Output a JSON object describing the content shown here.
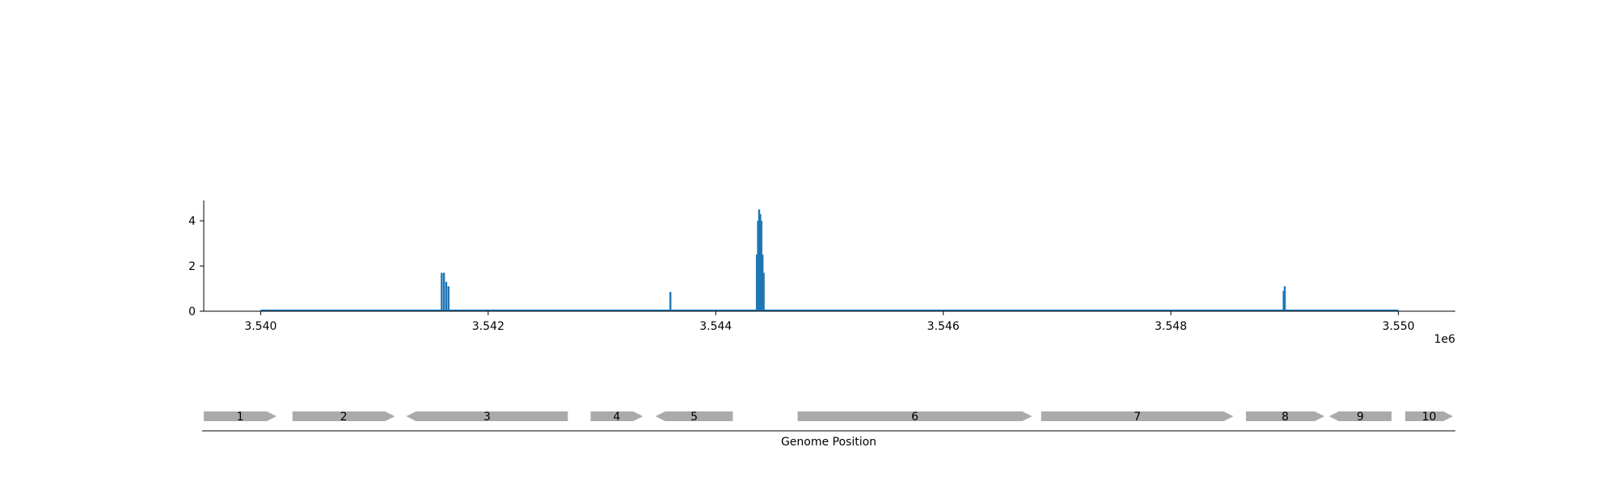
{
  "chart_data": [
    {
      "type": "area",
      "title": "",
      "xlabel": "",
      "ylabel": "",
      "x_offset_label": "1e6",
      "xlim": [
        3.5395,
        3.5505
      ],
      "ylim": [
        0,
        4.9
      ],
      "x_ticks": [
        3.54,
        3.542,
        3.544,
        3.546,
        3.548,
        3.55
      ],
      "x_tick_labels": [
        "3.540",
        "3.542",
        "3.544",
        "3.546",
        "3.548",
        "3.550"
      ],
      "y_ticks": [
        0,
        2,
        4
      ],
      "y_tick_labels": [
        "0",
        "2",
        "4"
      ],
      "grid": false,
      "series_color": "#1f77b4",
      "baseline_x": [
        3.54,
        3.55
      ],
      "peaks": [
        {
          "x": 3.54159,
          "y": 1.7
        },
        {
          "x": 3.54161,
          "y": 1.7
        },
        {
          "x": 3.54163,
          "y": 1.3
        },
        {
          "x": 3.54165,
          "y": 1.1
        },
        {
          "x": 3.5436,
          "y": 0.85
        },
        {
          "x": 3.54436,
          "y": 2.5
        },
        {
          "x": 3.54437,
          "y": 4.0
        },
        {
          "x": 3.54438,
          "y": 4.5
        },
        {
          "x": 3.54439,
          "y": 4.3
        },
        {
          "x": 3.5444,
          "y": 4.0
        },
        {
          "x": 3.54441,
          "y": 2.5
        },
        {
          "x": 3.54442,
          "y": 1.7
        },
        {
          "x": 3.54899,
          "y": 0.9
        },
        {
          "x": 3.549,
          "y": 1.1
        }
      ]
    },
    {
      "type": "gene_track",
      "xlabel": "Genome Position",
      "gene_color": "#aaaaaa",
      "genes": [
        {
          "label": "1",
          "start": 3.5395,
          "end": 3.54014,
          "strand": "+"
        },
        {
          "label": "2",
          "start": 3.54028,
          "end": 3.54118,
          "strand": "+"
        },
        {
          "label": "3",
          "start": 3.54128,
          "end": 3.5427,
          "strand": "-"
        },
        {
          "label": "4",
          "start": 3.5429,
          "end": 3.54336,
          "strand": "+"
        },
        {
          "label": "5",
          "start": 3.54347,
          "end": 3.54415,
          "strand": "-"
        },
        {
          "label": "6",
          "start": 3.54472,
          "end": 3.54678,
          "strand": "+"
        },
        {
          "label": "7",
          "start": 3.54686,
          "end": 3.54855,
          "strand": "+"
        },
        {
          "label": "8",
          "start": 3.54866,
          "end": 3.54935,
          "strand": "+"
        },
        {
          "label": "9",
          "start": 3.54939,
          "end": 3.54994,
          "strand": "-"
        },
        {
          "label": "10",
          "start": 3.55006,
          "end": 3.55048,
          "strand": "+"
        }
      ]
    }
  ]
}
